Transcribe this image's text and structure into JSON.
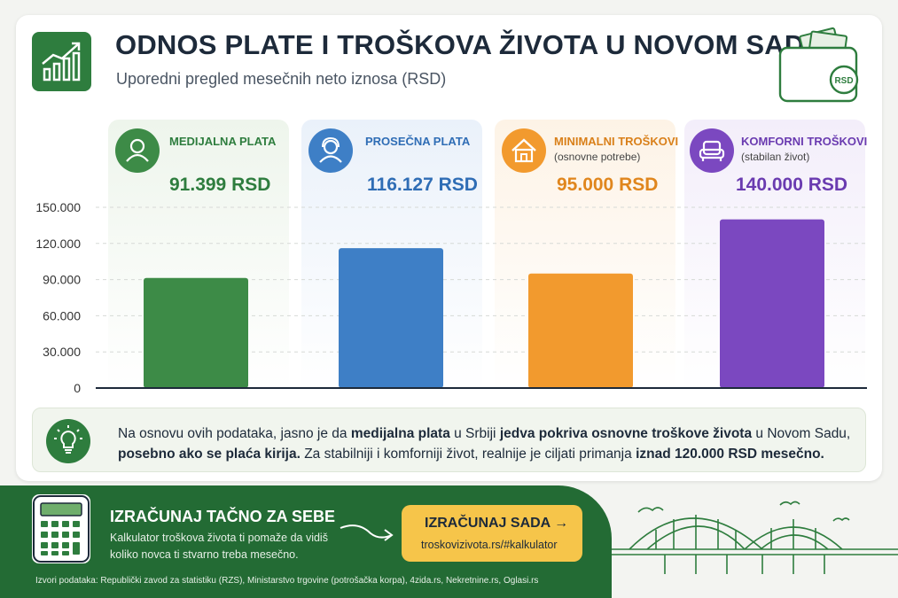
{
  "header": {
    "title": "ODNOS PLATE I TROŠKOVA ŽIVOTA U NOVOM SADU",
    "subtitle": "Uporedni pregled mesečnih neto iznosa (RSD)",
    "wallet_badge": "RSD"
  },
  "kpis": [
    {
      "label": "MEDIJALNA PLATA",
      "sub": "",
      "value": "91.399 RSD",
      "color": "#3d8b47",
      "bg": "#eef5ec",
      "icon": "person-icon"
    },
    {
      "label": "PROSEČNA PLATA",
      "sub": "",
      "value": "116.127 RSD",
      "color": "#2f6db5",
      "bg": "#eaf1fa",
      "icon": "support-person-icon"
    },
    {
      "label": "MINIMALNI TROŠKOVI",
      "sub": "(osnovne potrebe)",
      "value": "95.000 RSD",
      "color": "#f29a2e",
      "bg": "#fdf3e6",
      "icon": "house-icon"
    },
    {
      "label": "KOMFORNI TROŠKOVI",
      "sub": "(stabilan život)",
      "value": "140.000 RSD",
      "color": "#7b48c0",
      "bg": "#f3eefa",
      "icon": "armchair-icon"
    }
  ],
  "chart_data": {
    "type": "bar",
    "categories": [
      "MEDIJALNA PLATA",
      "PROSEČNA PLATA",
      "MINIMALNI TROŠKOVI",
      "KOMFORNI TROŠKOVI"
    ],
    "values": [
      91399,
      116127,
      95000,
      140000
    ],
    "colors": [
      "#3d8b47",
      "#3e7fc6",
      "#f29a2e",
      "#7b48c0"
    ],
    "ylim": [
      0,
      150000
    ],
    "yticks": [
      0,
      30000,
      60000,
      90000,
      120000,
      150000
    ],
    "ytick_labels": [
      "0",
      "30.000",
      "60.000",
      "90.000",
      "120.000",
      "150.000"
    ],
    "grid": true
  },
  "note": {
    "p1": "Na osnovu ovih podataka, jasno je da ",
    "b1": "medijalna plata",
    "p2": " u Srbiji ",
    "b2": "jedva pokriva osnovne troškove života",
    "p3": " u Novom Sadu, ",
    "b3": "posebno ako se plaća kirija.",
    "p4": " Za stabilniji i komforniji život, realnije je ciljati primanja ",
    "b4": "iznad 120.000 RSD mesečno."
  },
  "footer": {
    "cta_title": "IZRAČUNAJ TAČNO ZA SEBE",
    "cta_desc": "Kalkulator troškova života ti pomaže da vidiš koliko novca ti stvarno treba mesečno.",
    "button_label": "IZRAČUNAJ SADA  →",
    "button_url": "troskovizivota.rs/#kalkulator",
    "sources": "Izvori podataka: Republički zavod za statistiku (RZS), Ministarstvo trgovine (potrošačka korpa), 4zida.rs, Nekretnine.rs, Oglasi.rs"
  }
}
